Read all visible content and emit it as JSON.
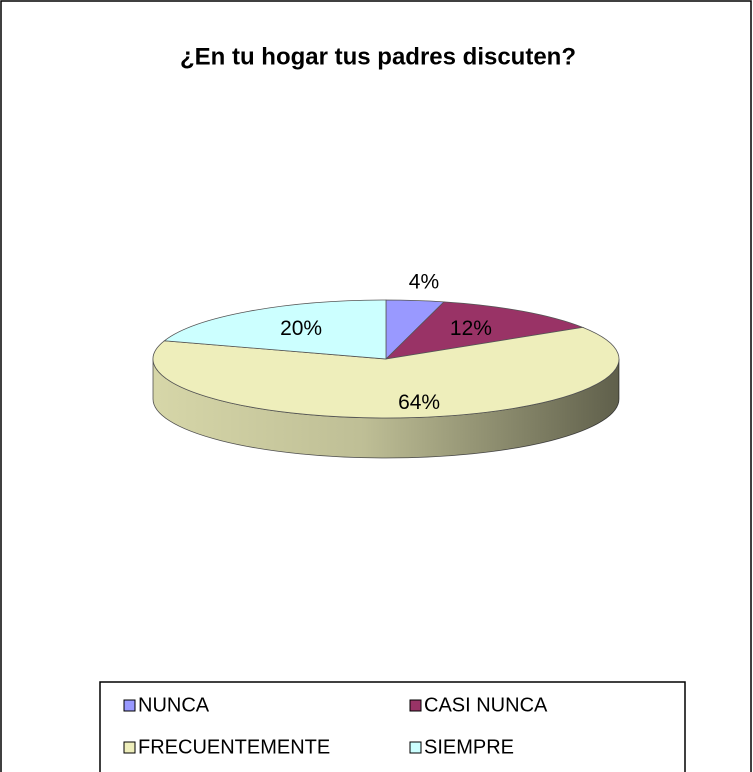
{
  "chart_data": {
    "type": "pie",
    "title": "¿En tu hogar tus padres discuten?",
    "categories": [
      "NUNCA",
      "CASI NUNCA",
      "FRECUENTEMENTE",
      "SIEMPRE"
    ],
    "values": [
      4,
      12,
      64,
      20
    ],
    "value_labels": [
      "4%",
      "12%",
      "64%",
      "20%"
    ],
    "colors": [
      "#9999ff",
      "#993366",
      "#eeeebb",
      "#ccffff"
    ],
    "legend": "bottom"
  }
}
